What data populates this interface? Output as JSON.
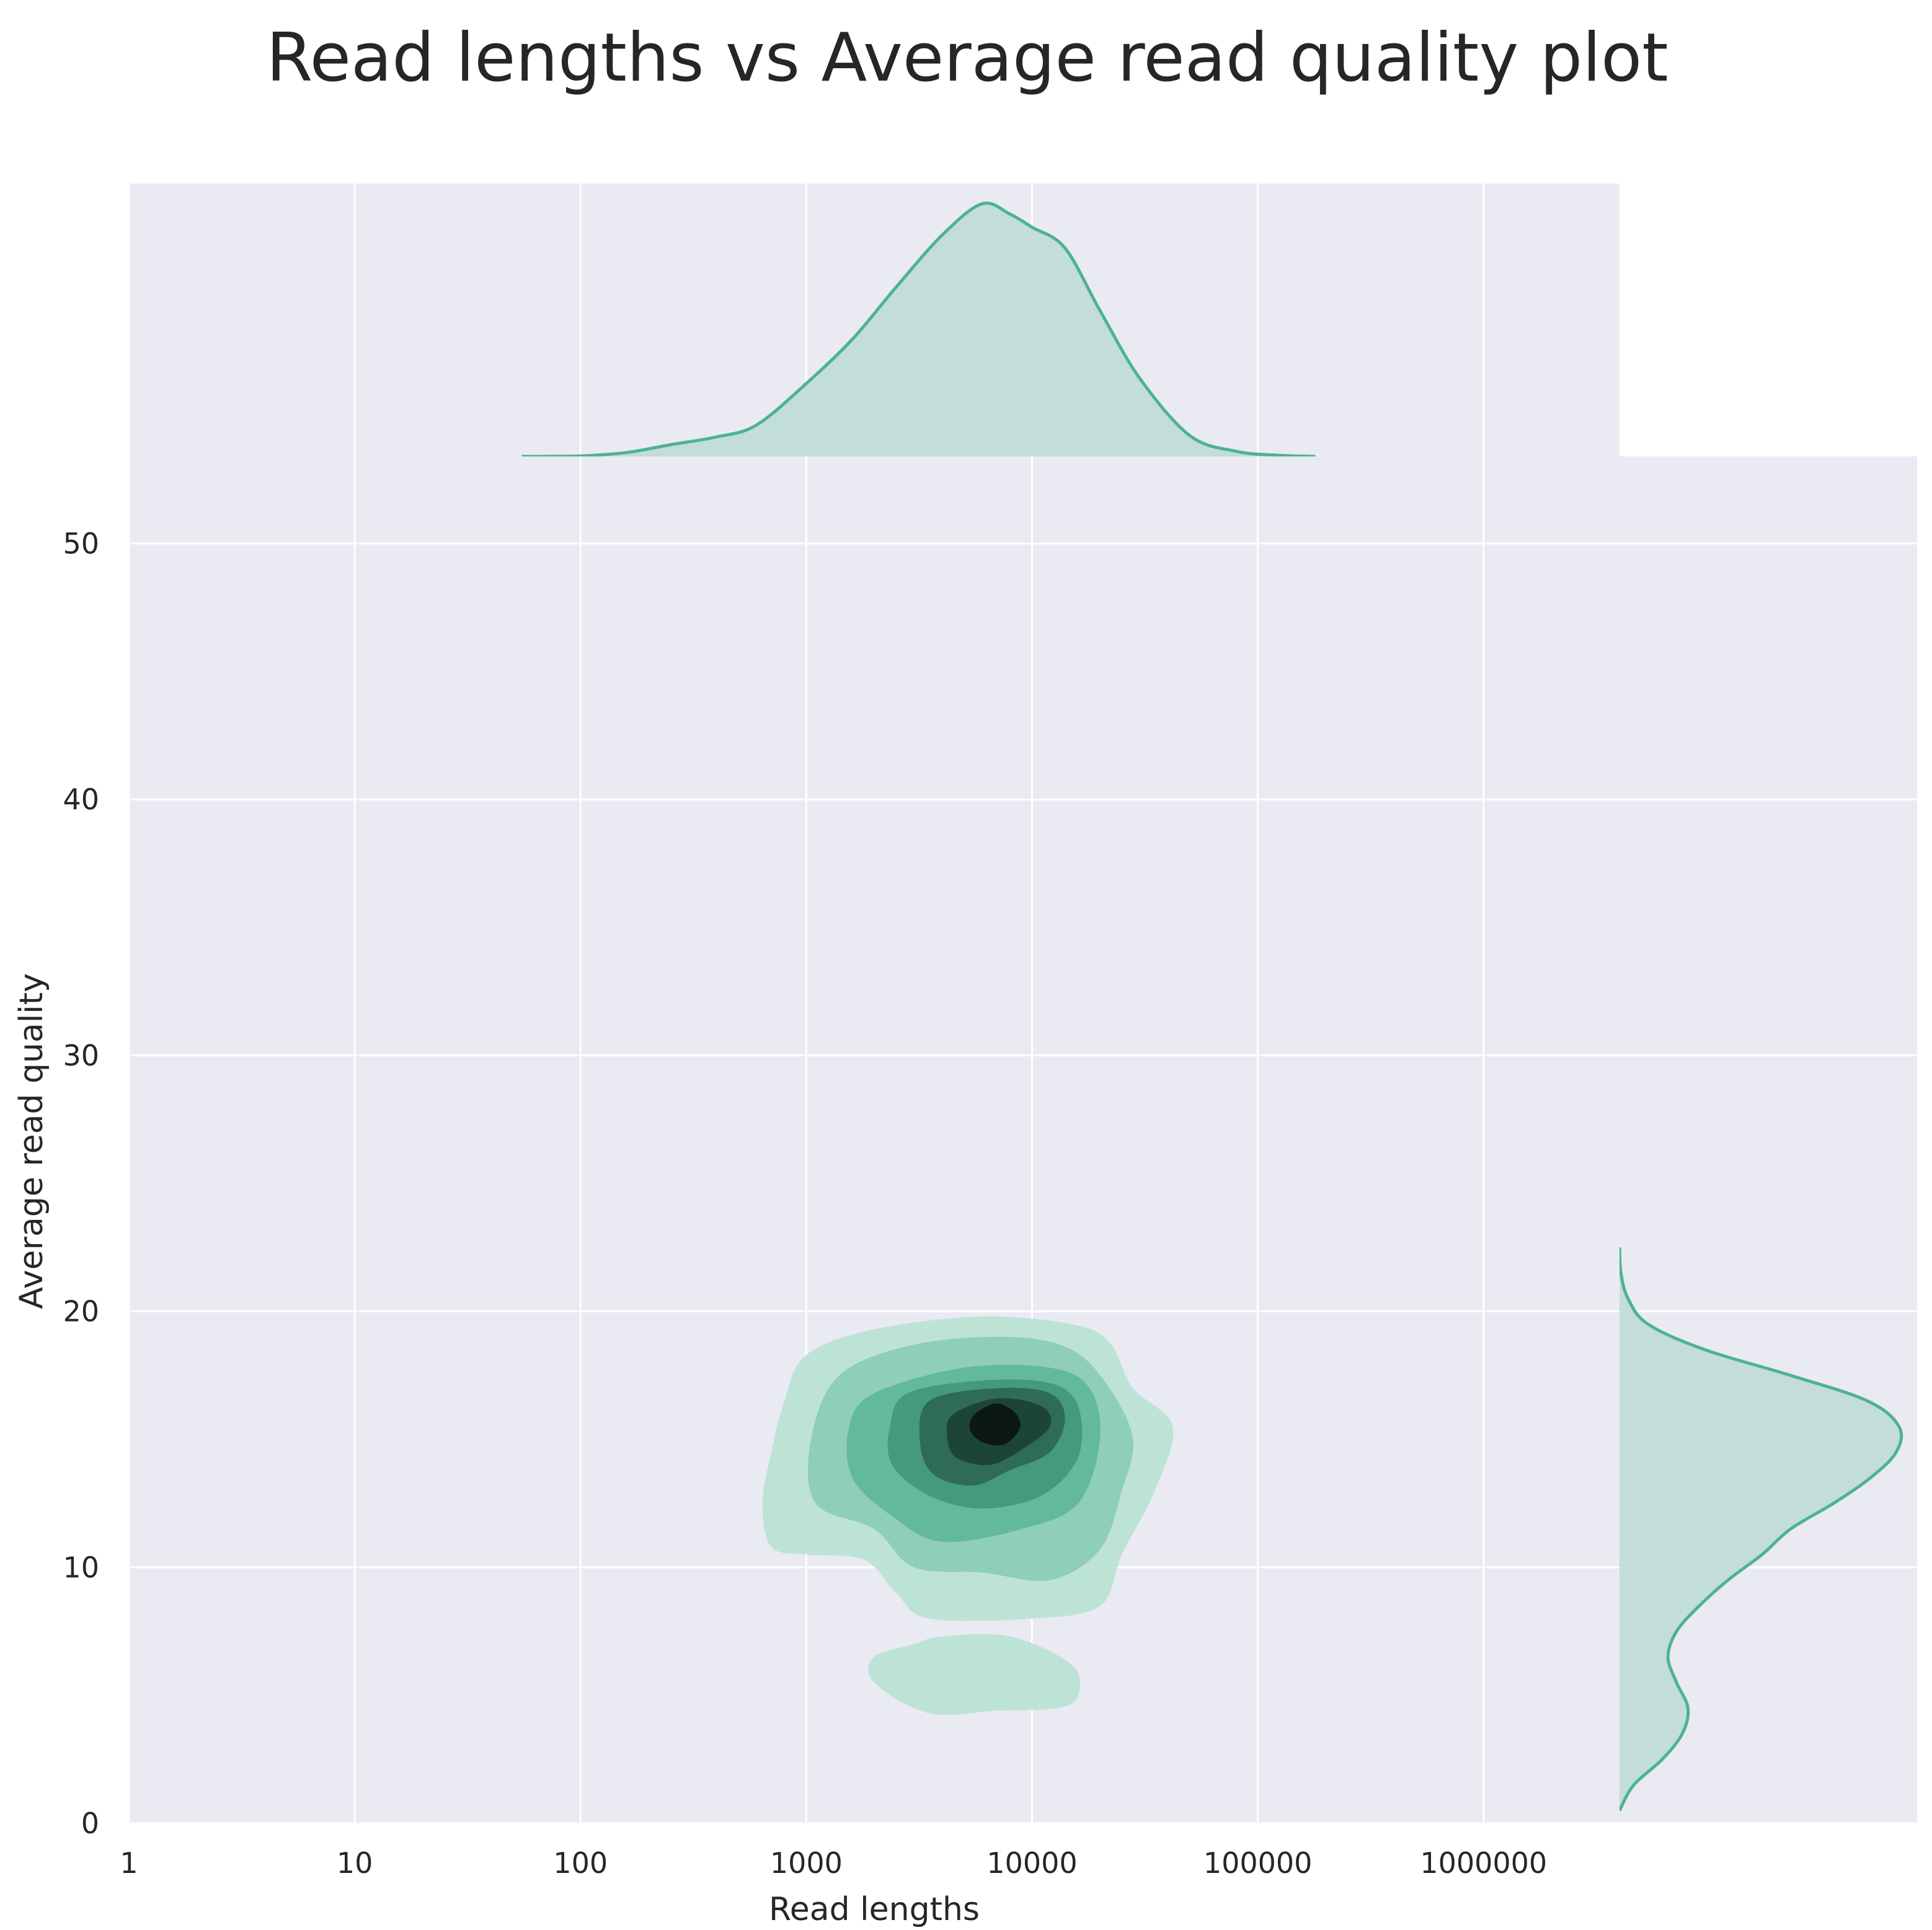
{
  "chart_data": {
    "type": "kde-joint",
    "title": "Read lengths vs Average read quality plot",
    "xlabel": "Read lengths",
    "ylabel": "Average read quality",
    "x_scale": "log10",
    "xlim": [
      1,
      4000000
    ],
    "ylim": [
      0,
      53.4
    ],
    "x_ticks": [
      1,
      10,
      100,
      1000,
      10000,
      100000,
      1000000
    ],
    "x_tick_labels": [
      "1",
      "10",
      "100",
      "1000",
      "10000",
      "100000",
      "1000000"
    ],
    "y_ticks": [
      0,
      10,
      20,
      30,
      40,
      50
    ],
    "y_tick_labels": [
      "0",
      "10",
      "20",
      "30",
      "40",
      "50"
    ],
    "grid": true,
    "colors": {
      "background": "#eaeaf2",
      "grid": "#ffffff",
      "line": "#4cb391",
      "fill": "#c3ddd8",
      "contour_levels": [
        "#bde3d6",
        "#8fceb7",
        "#63ba9b",
        "#449a7a",
        "#2e6c56",
        "#1d4537",
        "#0b1814"
      ]
    },
    "marginal_x": {
      "x": [
        55,
        100,
        160,
        250,
        400,
        600,
        1000,
        1600,
        2500,
        4000,
        6000,
        8000,
        10000,
        14000,
        20000,
        30000,
        50000,
        80000,
        120000,
        180000
      ],
      "density": [
        0,
        0.002,
        0.015,
        0.045,
        0.075,
        0.12,
        0.28,
        0.45,
        0.65,
        0.85,
        0.97,
        0.93,
        0.88,
        0.8,
        0.56,
        0.3,
        0.08,
        0.02,
        0.005,
        0
      ]
    },
    "marginal_y": {
      "y": [
        0.5,
        1.5,
        2.5,
        3.5,
        4.5,
        5.5,
        6.5,
        7.5,
        8.5,
        9.5,
        10.5,
        11.5,
        12.5,
        13.5,
        14.5,
        15.5,
        16.5,
        17.5,
        18.5,
        19.5,
        20.5,
        21.5,
        22.5
      ],
      "density": [
        0,
        0.05,
        0.15,
        0.22,
        0.24,
        0.2,
        0.17,
        0.2,
        0.28,
        0.38,
        0.5,
        0.6,
        0.75,
        0.88,
        0.97,
        0.98,
        0.87,
        0.6,
        0.3,
        0.1,
        0.03,
        0.005,
        0
      ]
    },
    "kde_contours": [
      {
        "level": 1,
        "polygons": [
          [
            [
              1000,
              18.3
            ],
            [
              2000,
              19.3
            ],
            [
              6000,
              19.8
            ],
            [
              15000,
              19.5
            ],
            [
              22000,
              18.8
            ],
            [
              28000,
              17.0
            ],
            [
              42000,
              15.5
            ],
            [
              35000,
              13.0
            ],
            [
              25000,
              10.5
            ],
            [
              20000,
              8.5
            ],
            [
              10000,
              8.0
            ],
            [
              3500,
              8.0
            ],
            [
              2500,
              9.0
            ],
            [
              1800,
              10.3
            ],
            [
              1000,
              10.5
            ],
            [
              700,
              10.8
            ],
            [
              640,
              12.5
            ],
            [
              700,
              14.5
            ],
            [
              800,
              16.5
            ]
          ],
          [
            [
              2000,
              6.5
            ],
            [
              3000,
              7.0
            ],
            [
              4000,
              7.3
            ],
            [
              8000,
              7.3
            ],
            [
              15000,
              6.2
            ],
            [
              16000,
              5.0
            ],
            [
              13000,
              4.5
            ],
            [
              7000,
              4.4
            ],
            [
              3500,
              4.3
            ],
            [
              2000,
              5.5
            ]
          ]
        ]
      },
      {
        "level": 2,
        "polygons": [
          [
            [
              1400,
              17.5
            ],
            [
              3000,
              18.7
            ],
            [
              8000,
              19.0
            ],
            [
              15000,
              18.5
            ],
            [
              22000,
              17.0
            ],
            [
              28000,
              15.0
            ],
            [
              25000,
              13.0
            ],
            [
              20000,
              10.7
            ],
            [
              12000,
              9.5
            ],
            [
              6000,
              9.8
            ],
            [
              3000,
              10.0
            ],
            [
              2000,
              11.5
            ],
            [
              1100,
              12.5
            ],
            [
              1050,
              15.0
            ]
          ]
        ]
      },
      {
        "level": 3,
        "polygons": [
          [
            [
              2000,
              16.8
            ],
            [
              5000,
              17.8
            ],
            [
              12000,
              17.8
            ],
            [
              18000,
              17.0
            ],
            [
              20000,
              15.0
            ],
            [
              16000,
              12.5
            ],
            [
              9000,
              11.5
            ],
            [
              4000,
              11.0
            ],
            [
              2400,
              12.0
            ],
            [
              1600,
              13.5
            ],
            [
              1550,
              15.5
            ]
          ]
        ]
      },
      {
        "level": 4,
        "polygons": [
          [
            [
              2800,
              16.8
            ],
            [
              6000,
              17.3
            ],
            [
              12000,
              17.2
            ],
            [
              16000,
              16.3
            ],
            [
              16000,
              14.3
            ],
            [
              11000,
              12.8
            ],
            [
              6000,
              12.3
            ],
            [
              3500,
              12.8
            ],
            [
              2400,
              14.0
            ],
            [
              2350,
              15.5
            ]
          ]
        ]
      },
      {
        "level": 5,
        "polygons": [
          [
            [
              3500,
              16.5
            ],
            [
              7000,
              17.0
            ],
            [
              12000,
              16.8
            ],
            [
              14000,
              15.8
            ],
            [
              12000,
              14.5
            ],
            [
              8000,
              13.8
            ],
            [
              5500,
              13.2
            ],
            [
              3700,
              13.6
            ],
            [
              3200,
              14.8
            ]
          ]
        ]
      },
      {
        "level": 6,
        "polygons": [
          [
            [
              4500,
              16.0
            ],
            [
              7000,
              16.6
            ],
            [
              11000,
              16.3
            ],
            [
              12000,
              15.5
            ],
            [
              9000,
              14.6
            ],
            [
              6500,
              14.0
            ],
            [
              4600,
              14.3
            ],
            [
              4200,
              15.2
            ]
          ]
        ]
      },
      {
        "level": 7,
        "polygons": [
          [
            [
              5600,
              16.0
            ],
            [
              7000,
              16.4
            ],
            [
              8500,
              16.0
            ],
            [
              8800,
              15.4
            ],
            [
              7500,
              14.8
            ],
            [
              6000,
              14.9
            ],
            [
              5300,
              15.4
            ]
          ]
        ]
      }
    ]
  }
}
